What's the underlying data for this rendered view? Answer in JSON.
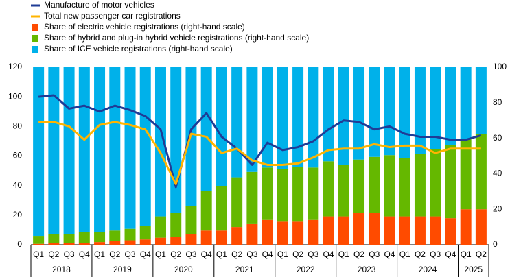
{
  "chart_data": {
    "type": "bar",
    "categories": [
      "Q1",
      "Q2",
      "Q3",
      "Q4",
      "Q1",
      "Q2",
      "Q3",
      "Q4",
      "Q1",
      "Q2",
      "Q3",
      "Q4",
      "Q1",
      "Q2",
      "Q3",
      "Q4",
      "Q1",
      "Q2",
      "Q3",
      "Q4",
      "Q1",
      "Q2",
      "Q3",
      "Q4",
      "Q1",
      "Q2",
      "Q3",
      "Q4",
      "Q1",
      "Q2"
    ],
    "year_groups": [
      "2018",
      "2019",
      "2020",
      "2021",
      "2022",
      "2023",
      "2024",
      "2025"
    ],
    "ylim": [
      0,
      120
    ],
    "yticks": [
      0,
      20,
      40,
      60,
      80,
      100,
      120
    ],
    "y2lim": [
      0,
      100
    ],
    "y2ticks": [
      0,
      20,
      40,
      60,
      80,
      100
    ],
    "legend": "top-left",
    "series": [
      {
        "name": "Manufacture of motor vehicles",
        "type": "line",
        "color": "#1f3c96",
        "values": [
          100,
          101,
          92,
          94,
          90,
          94,
          91,
          87,
          78,
          39,
          78,
          89,
          73,
          65,
          54,
          69,
          64,
          66,
          70,
          78,
          84,
          83,
          78,
          80,
          75,
          73,
          73,
          71,
          71,
          74
        ]
      },
      {
        "name": "Total new passenger car registrations",
        "type": "line",
        "color": "#ffb400",
        "values": [
          83,
          83,
          80,
          71,
          81,
          83,
          81,
          78,
          62,
          41,
          75,
          73,
          62,
          65,
          57,
          54,
          54,
          55,
          59,
          64,
          65,
          65,
          68,
          66,
          67,
          67,
          62,
          65,
          65,
          65
        ]
      },
      {
        "name": "Share of electric vehicle registrations (right-hand scale)",
        "type": "bar",
        "axis": "y2",
        "color": "#ff4b00",
        "values": [
          0.5,
          1,
          1,
          1,
          1.5,
          2,
          2.5,
          3,
          4,
          4.5,
          6,
          8,
          8,
          10,
          12,
          14,
          13,
          13,
          14,
          16,
          16,
          18,
          18,
          16,
          16,
          16,
          16,
          15,
          20,
          20
        ]
      },
      {
        "name": "Share of hybrid and plug-in hybrid vehicle registrations (right-hand scale)",
        "type": "bar",
        "axis": "y2",
        "color": "#65b800",
        "values": [
          4.5,
          5,
          5,
          6,
          5.5,
          6,
          6.5,
          7.5,
          12,
          13.5,
          16,
          22.5,
          25,
          28,
          29,
          29.5,
          29.5,
          31,
          29.5,
          31,
          29,
          30,
          31.5,
          34.5,
          33,
          35,
          38,
          41,
          39.5,
          42.5
        ]
      },
      {
        "name": "Share of ICE vehicle registrations (right-hand scale)",
        "type": "bar",
        "axis": "y2",
        "color": "#00b1ea",
        "values": [
          95,
          94,
          94,
          93,
          93,
          92,
          91,
          89.5,
          84,
          82,
          78,
          69.5,
          67,
          62,
          59,
          56.5,
          57.5,
          56,
          56.5,
          53,
          55,
          52,
          50.5,
          49.5,
          51,
          49,
          46,
          44,
          40.5,
          37.5
        ]
      }
    ]
  }
}
